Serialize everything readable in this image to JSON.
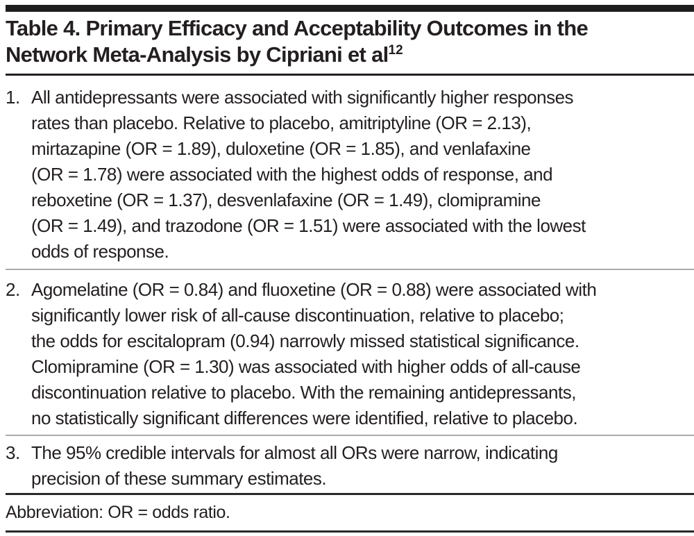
{
  "table": {
    "title": {
      "line1": "Table 4. Primary Efficacy and Acceptability Outcomes in the",
      "line2": "Network Meta-Analysis by Cipriani et al",
      "superscript": "12"
    },
    "items": [
      {
        "number": "1.",
        "lines": [
          "All antidepressants were associated with significantly higher responses",
          "rates than placebo. Relative to placebo, amitriptyline (OR = 2.13),",
          "mirtazapine (OR = 1.89), duloxetine (OR = 1.85), and venlafaxine",
          "(OR = 1.78) were associated with the highest odds of response, and",
          "reboxetine (OR = 1.37), desvenlafaxine (OR = 1.49), clomipramine",
          "(OR = 1.49), and trazodone (OR = 1.51) were associated with the lowest",
          "odds of response."
        ]
      },
      {
        "number": "2.",
        "lines": [
          "Agomelatine (OR = 0.84) and fluoxetine (OR = 0.88) were associated with",
          "significantly lower risk of all-cause discontinuation, relative to placebo;",
          "the odds for escitalopram (0.94) narrowly missed statistical significance.",
          "Clomipramine (OR = 1.30) was associated with higher odds of all-cause",
          "discontinuation relative to placebo. With the remaining antidepressants,",
          "no statistically significant differences were identified, relative to placebo."
        ]
      },
      {
        "number": "3.",
        "lines": [
          "The 95% credible intervals for almost all ORs were narrow, indicating",
          "precision of these summary estimates."
        ]
      }
    ],
    "footnote": "Abbreviation: OR = odds ratio.",
    "odds_ratios": {
      "response_highest": {
        "amitriptyline": 2.13,
        "mirtazapine": 1.89,
        "duloxetine": 1.85,
        "venlafaxine": 1.78
      },
      "response_lowest": {
        "reboxetine": 1.37,
        "desvenlafaxine": 1.49,
        "clomipramine": 1.49,
        "trazodone": 1.51
      },
      "discontinuation": {
        "agomelatine": 0.84,
        "fluoxetine": 0.88,
        "escitalopram": 0.94,
        "clomipramine": 1.3
      }
    },
    "colors": {
      "text": "#231f20",
      "top_bar": "#1e1d1d",
      "dark_rule": "#2a2829",
      "light_separator": "#ababab",
      "background": "#ffffff"
    }
  }
}
